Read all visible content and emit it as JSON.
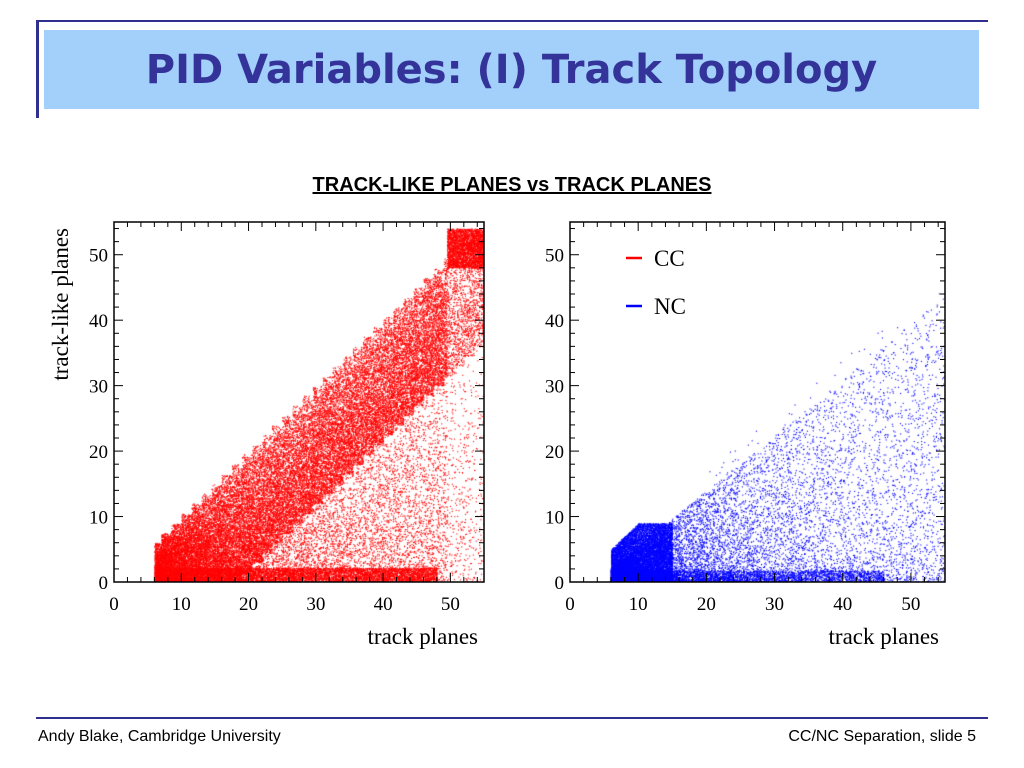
{
  "slide": {
    "title": "PID Variables: (I) Track Topology",
    "heading": "TRACK-LIKE PLANES vs TRACK PLANES"
  },
  "footer": {
    "author": "Andy Blake, Cambridge University",
    "slide_info": "CC/NC Separation, slide 5"
  },
  "colors": {
    "title_text": "#333399",
    "title_band": "#a3d0fb",
    "frame": "#2f2f8f",
    "cc": "#ff0000",
    "nc": "#0000ff"
  },
  "chart_data": [
    {
      "type": "scatter",
      "title": "",
      "xlabel": "track planes",
      "ylabel": "track-like planes",
      "xlim": [
        0,
        55
      ],
      "ylim": [
        0,
        55
      ],
      "xticks": [
        0,
        10,
        20,
        30,
        40,
        50
      ],
      "yticks": [
        0,
        10,
        20,
        30,
        40,
        50
      ],
      "grid": false,
      "series": [
        {
          "name": "",
          "color": "#ff0000",
          "distribution": "dense band below diagonal y = x from x = 6 to x = 55, steps of about 1.5 in y; sparse fill toward y = 0 and a dense strip at y of about 0-2",
          "x_range": [
            6,
            55
          ],
          "y_range": [
            0,
            54
          ]
        }
      ]
    },
    {
      "type": "scatter",
      "title": "",
      "xlabel": "track planes",
      "ylabel": "",
      "xlim": [
        0,
        55
      ],
      "ylim": [
        0,
        55
      ],
      "xticks": [
        0,
        10,
        20,
        30,
        40,
        50
      ],
      "yticks": [
        0,
        10,
        20,
        30,
        40,
        50
      ],
      "grid": false,
      "legend": {
        "position": "top-left",
        "entries": [
          {
            "label": "CC",
            "color": "#ff0000"
          },
          {
            "label": "NC",
            "color": "#0000ff"
          }
        ]
      },
      "series": [
        {
          "name": "NC",
          "color": "#0000ff",
          "distribution": "dense cluster at x = 6-15, y = 0-8; density falls with x, sparse points up to x of about 55 and y of about 45",
          "x_range": [
            6,
            55
          ],
          "y_range": [
            0,
            45
          ]
        }
      ]
    }
  ]
}
